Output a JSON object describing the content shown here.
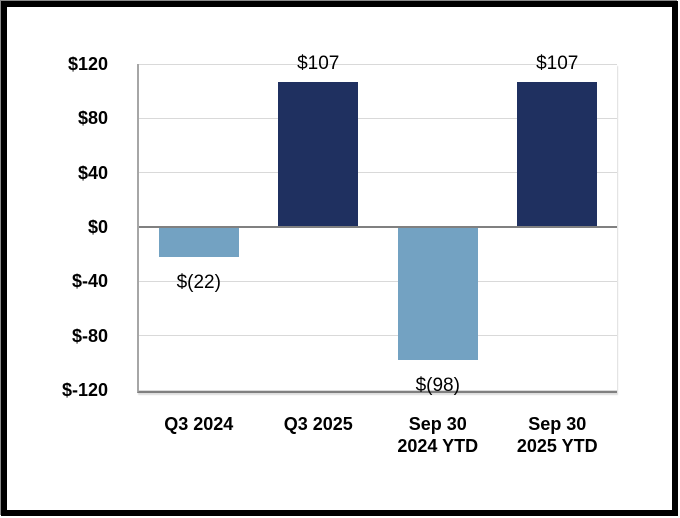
{
  "chart_data": {
    "type": "bar",
    "title": "",
    "xlabel": "",
    "ylabel": "",
    "ylim": [
      -120,
      120
    ],
    "grid": true,
    "legend": false,
    "y_ticks": [
      {
        "value": 120,
        "label": "$120"
      },
      {
        "value": 80,
        "label": "$80"
      },
      {
        "value": 40,
        "label": "$40"
      },
      {
        "value": 0,
        "label": "$0"
      },
      {
        "value": -40,
        "label": "$-40"
      },
      {
        "value": -80,
        "label": "$-80"
      },
      {
        "value": -120,
        "label": "$-120"
      }
    ],
    "categories": [
      "Q3 2024",
      "Q3 2025",
      "Sep 30 2024 YTD",
      "Sep 30 2025 YTD"
    ],
    "category_lines": [
      [
        "Q3 2024"
      ],
      [
        "Q3 2025"
      ],
      [
        "Sep 30",
        "2024 YTD"
      ],
      [
        "Sep 30",
        "2025 YTD"
      ]
    ],
    "values": [
      -22,
      107,
      -98,
      107
    ],
    "value_labels": [
      "$(22)",
      "$107",
      "$(98)",
      "$107"
    ],
    "bar_colors": [
      "#73A2C2",
      "#1F3060",
      "#73A2C2",
      "#1F3060"
    ],
    "colors": {
      "bar_positive": "#1F3060",
      "bar_negative": "#73A2C2",
      "gridline": "#D9D9D9",
      "zero_line": "#808080",
      "axis_line": "#A6A6A6",
      "text": "#000000",
      "frame": "#000000",
      "background": "#FFFFFF"
    }
  }
}
